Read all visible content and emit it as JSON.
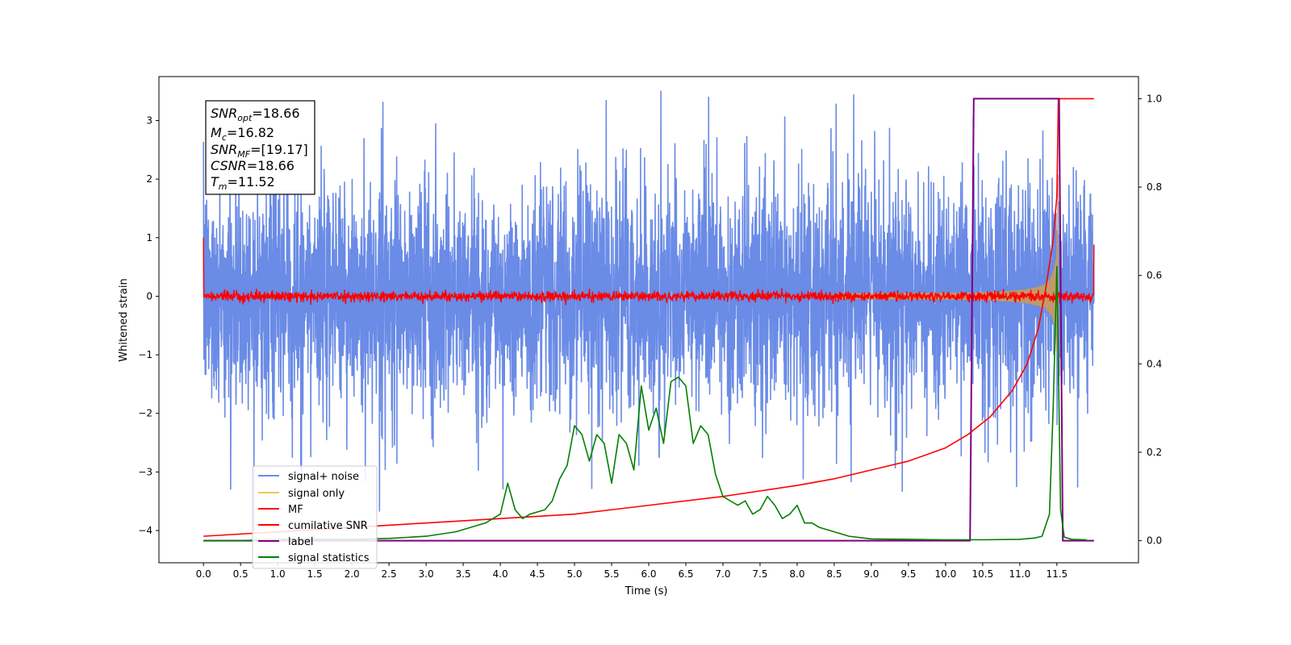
{
  "chart_data": {
    "type": "line",
    "xlabel": "Time (s)",
    "ylabel": "Whitened strain",
    "xlim": [
      -0.6,
      12.6
    ],
    "ylim_left": [
      -4.55,
      3.75
    ],
    "ylim_right": [
      -0.05,
      1.05
    ],
    "x_ticks": [
      "0.0",
      "0.5",
      "1.0",
      "1.5",
      "2.0",
      "2.5",
      "3.0",
      "3.5",
      "4.0",
      "4.5",
      "5.0",
      "5.5",
      "6.0",
      "6.5",
      "7.0",
      "7.5",
      "8.0",
      "8.5",
      "9.0",
      "9.5",
      "10.0",
      "10.5",
      "11.0",
      "11.5"
    ],
    "y_ticks_left": [
      "3",
      "2",
      "1",
      "0",
      "−1",
      "−2",
      "−3",
      "−4"
    ],
    "y_ticks_right": [
      "1.0",
      "0.8",
      "0.6",
      "0.4",
      "0.2",
      "0.0"
    ],
    "legend_position": "lower-left",
    "legend": [
      "signal+ noise",
      "signal only",
      "MF",
      "cumilative SNR",
      "label",
      "signal statistics"
    ],
    "colors": {
      "signal_noise": "#6a8be6",
      "signal_only": "#f5c45a",
      "signal_overlap": "#c09a6a",
      "mf": "#ff0000",
      "cumulative_snr": "#ff0000",
      "label": "#800080",
      "signal_statistics": "#008000"
    },
    "annotation": {
      "snr_opt": "=18.66",
      "mc": "=16.82",
      "snr_mf": "=[19.17]",
      "csnr": "=18.66",
      "tm": "=11.52"
    },
    "signal_statistics": {
      "x": [
        0.0,
        0.5,
        1.0,
        1.5,
        2.0,
        2.5,
        2.8,
        3.0,
        3.2,
        3.4,
        3.6,
        3.8,
        4.0,
        4.1,
        4.2,
        4.3,
        4.4,
        4.6,
        4.7,
        4.8,
        4.9,
        5.0,
        5.1,
        5.2,
        5.3,
        5.4,
        5.5,
        5.6,
        5.7,
        5.8,
        5.9,
        6.0,
        6.1,
        6.2,
        6.3,
        6.4,
        6.5,
        6.6,
        6.7,
        6.8,
        6.9,
        7.0,
        7.1,
        7.2,
        7.3,
        7.4,
        7.5,
        7.6,
        7.7,
        7.8,
        7.9,
        8.0,
        8.1,
        8.2,
        8.3,
        8.5,
        8.7,
        9.0,
        9.5,
        10.0,
        10.5,
        11.0,
        11.2,
        11.3,
        11.4,
        11.45,
        11.5,
        11.55,
        11.6,
        11.7,
        11.9
      ],
      "y": [
        0.0,
        0.0,
        0.003,
        0.003,
        0.003,
        0.005,
        0.008,
        0.01,
        0.015,
        0.02,
        0.03,
        0.04,
        0.06,
        0.13,
        0.07,
        0.05,
        0.06,
        0.07,
        0.09,
        0.14,
        0.17,
        0.26,
        0.24,
        0.18,
        0.24,
        0.22,
        0.13,
        0.24,
        0.22,
        0.16,
        0.35,
        0.25,
        0.3,
        0.22,
        0.36,
        0.37,
        0.35,
        0.22,
        0.26,
        0.24,
        0.15,
        0.1,
        0.09,
        0.08,
        0.09,
        0.06,
        0.07,
        0.1,
        0.08,
        0.05,
        0.06,
        0.08,
        0.04,
        0.04,
        0.03,
        0.02,
        0.01,
        0.004,
        0.003,
        0.002,
        0.002,
        0.003,
        0.006,
        0.01,
        0.06,
        0.3,
        0.62,
        0.07,
        0.008,
        0.003,
        0.002
      ]
    },
    "label_series": {
      "x": [
        0.0,
        10.33,
        10.38,
        11.53,
        11.58,
        12.0
      ],
      "y": [
        0.0,
        0.0,
        1.0,
        1.0,
        0.0,
        0.0
      ]
    },
    "cumulative_snr": {
      "x": [
        0.0,
        1.0,
        2.0,
        3.0,
        4.0,
        5.0,
        6.0,
        7.0,
        8.0,
        8.5,
        9.0,
        9.5,
        10.0,
        10.3,
        10.6,
        10.9,
        11.1,
        11.25,
        11.35,
        11.45,
        11.5,
        11.52,
        11.6,
        12.0
      ],
      "y": [
        0.01,
        0.02,
        0.03,
        0.04,
        0.05,
        0.06,
        0.08,
        0.1,
        0.125,
        0.14,
        0.16,
        0.18,
        0.21,
        0.24,
        0.28,
        0.34,
        0.4,
        0.48,
        0.57,
        0.68,
        0.78,
        1.0,
        1.0,
        1.0
      ]
    }
  }
}
